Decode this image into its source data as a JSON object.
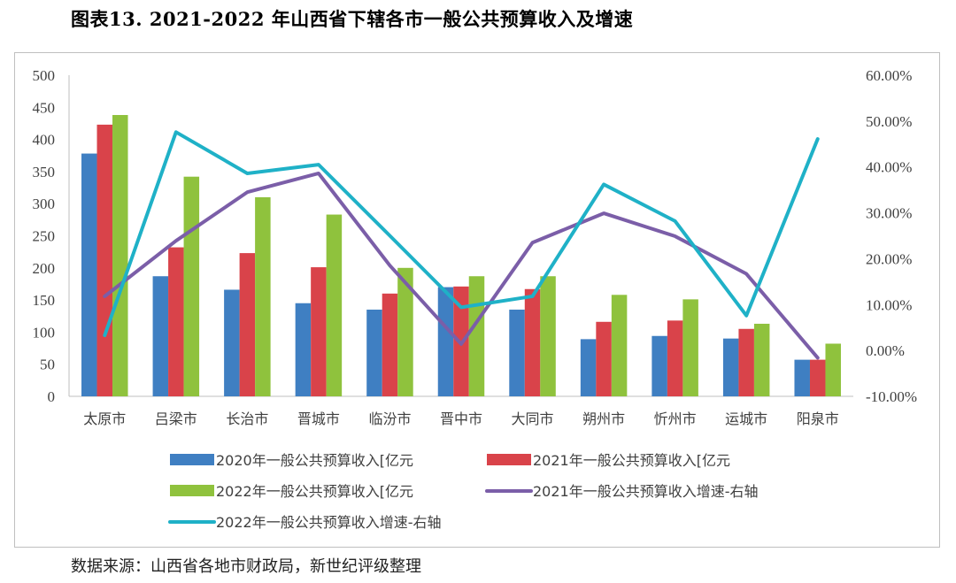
{
  "title": "图表13. 2021-2022 年山西省下辖各市一般公共预算收入及增速",
  "source": "数据来源：山西省各地市财政局，新世纪评级整理",
  "chart_data": {
    "type": "bar",
    "categories": [
      "太原市",
      "吕梁市",
      "长治市",
      "晋城市",
      "临汾市",
      "晋中市",
      "大同市",
      "朔州市",
      "忻州市",
      "运城市",
      "阳泉市"
    ],
    "series": [
      {
        "name": "2020年一般公共预算收入[亿元",
        "kind": "bar",
        "axis": "left",
        "color": "#3f7fc2",
        "values": [
          378,
          187,
          166,
          145,
          135,
          170,
          135,
          89,
          94,
          90,
          57
        ]
      },
      {
        "name": "2021年一般公共预算收入[亿元",
        "kind": "bar",
        "axis": "left",
        "color": "#d9434a",
        "values": [
          423,
          232,
          223,
          201,
          160,
          171,
          167,
          116,
          118,
          105,
          57
        ]
      },
      {
        "name": "2022年一般公共预算收入[亿元",
        "kind": "bar",
        "axis": "left",
        "color": "#8fc23d",
        "values": [
          438,
          342,
          310,
          283,
          200,
          187,
          187,
          158,
          151,
          113,
          82
        ]
      },
      {
        "name": "2021年一般公共预算收入增速-右轴",
        "kind": "line",
        "axis": "right",
        "color": "#7b5ea8",
        "values": [
          11.8,
          23.9,
          34.5,
          38.6,
          18.5,
          1.4,
          23.5,
          29.9,
          24.9,
          16.7,
          -1.6
        ]
      },
      {
        "name": "2022年一般公共预算收入增速-右轴",
        "kind": "line",
        "axis": "right",
        "color": "#1fb1c7",
        "values": [
          3.3,
          47.6,
          38.6,
          40.5,
          25.0,
          9.4,
          11.8,
          36.2,
          28.2,
          7.6,
          46.1
        ]
      }
    ],
    "yleft": {
      "min": 0,
      "max": 500,
      "ticks": [
        "0",
        "50",
        "100",
        "150",
        "200",
        "250",
        "300",
        "350",
        "400",
        "450",
        "500"
      ]
    },
    "yright": {
      "min": -10,
      "max": 60,
      "ticks": [
        "-10.00%",
        "0.00%",
        "10.00%",
        "20.00%",
        "30.00%",
        "40.00%",
        "50.00%",
        "60.00%"
      ]
    },
    "legend_position": "bottom",
    "grid": false
  }
}
